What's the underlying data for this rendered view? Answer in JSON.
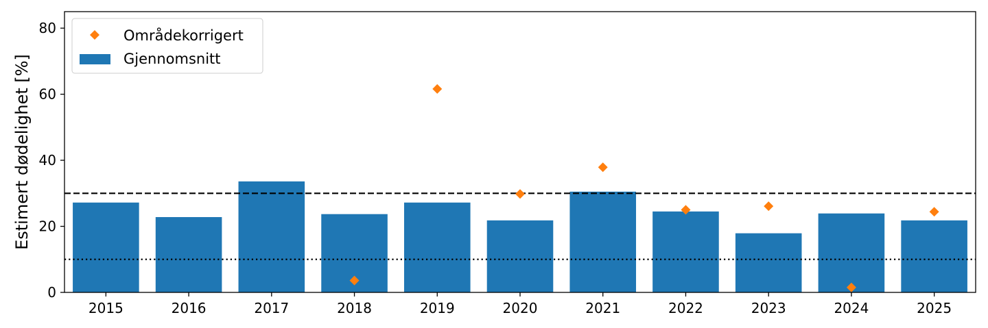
{
  "chart_data": {
    "type": "bar",
    "title": "",
    "xlabel": "",
    "ylabel": "Estimert dødelighet [%]",
    "ylim": [
      0,
      85
    ],
    "yticks": [
      0,
      20,
      40,
      60,
      80
    ],
    "categories": [
      "2015",
      "2016",
      "2017",
      "2018",
      "2019",
      "2020",
      "2021",
      "2022",
      "2023",
      "2024",
      "2025"
    ],
    "series": [
      {
        "name": "Gjennomsnitt",
        "kind": "bar",
        "color": "#1f77b4",
        "values": [
          27.2,
          22.8,
          33.6,
          23.7,
          27.2,
          21.8,
          30.5,
          24.5,
          17.9,
          23.9,
          21.8
        ]
      },
      {
        "name": "Områdekorrigert",
        "kind": "scatter",
        "marker": "diamond",
        "color": "#ff7f0e",
        "values": [
          null,
          null,
          null,
          3.6,
          61.6,
          29.8,
          37.9,
          25.0,
          26.1,
          1.5,
          24.4
        ]
      }
    ],
    "reference_lines": [
      {
        "y": 30,
        "style": "dashed",
        "color": "#000000"
      },
      {
        "y": 10,
        "style": "dotted",
        "color": "#000000"
      }
    ],
    "legend": {
      "placement": "upper-left"
    },
    "grid": false
  }
}
